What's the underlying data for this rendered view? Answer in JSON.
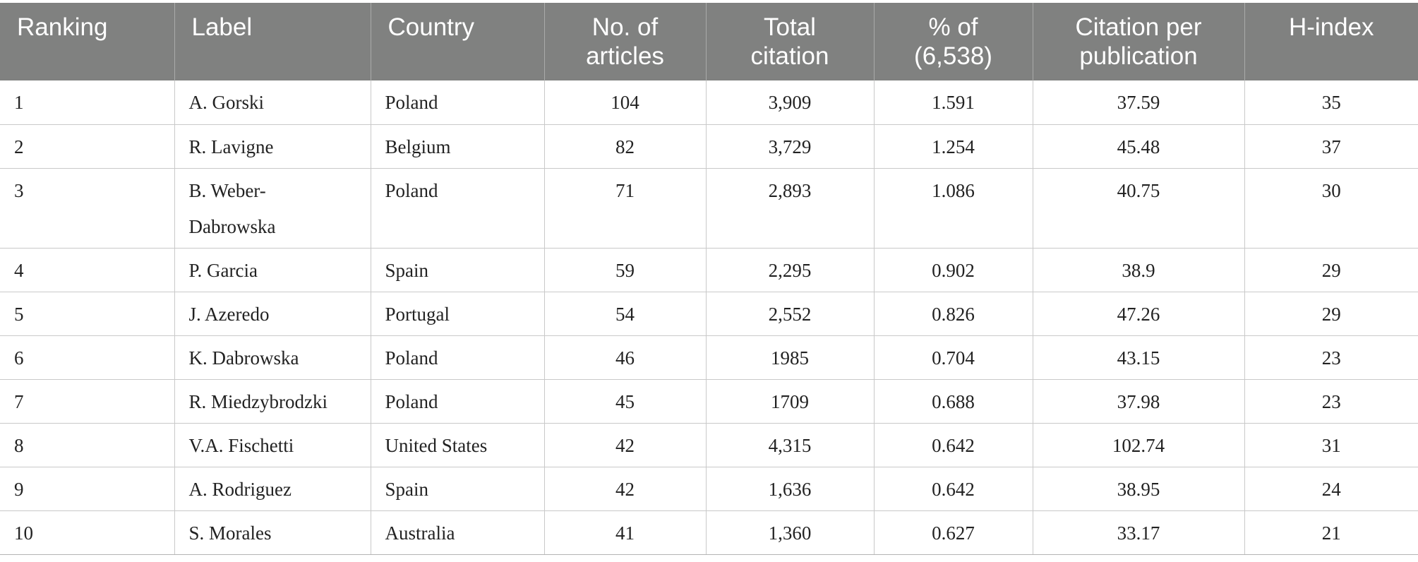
{
  "table": {
    "headers": {
      "ranking": "Ranking",
      "label": "Label",
      "country": "Country",
      "articles_line1": "No. of",
      "articles_line2": "articles",
      "citation_line1": "Total",
      "citation_line2": "citation",
      "percent_line1": "% of",
      "percent_line2": "(6,538)",
      "cpp_line1": "Citation per",
      "cpp_line2": "publication",
      "hindex": "H-index"
    },
    "rows": [
      {
        "ranking": "1",
        "label": "A. Gorski",
        "label_line2": "",
        "country": "Poland",
        "articles": "104",
        "total_citation": "3,909",
        "percent": "1.591",
        "cpp": "37.59",
        "hindex": "35"
      },
      {
        "ranking": "2",
        "label": "R. Lavigne",
        "label_line2": "",
        "country": "Belgium",
        "articles": "82",
        "total_citation": "3,729",
        "percent": "1.254",
        "cpp": "45.48",
        "hindex": "37"
      },
      {
        "ranking": "3",
        "label": "B. Weber-",
        "label_line2": "Dabrowska",
        "country": "Poland",
        "articles": "71",
        "total_citation": "2,893",
        "percent": "1.086",
        "cpp": "40.75",
        "hindex": "30"
      },
      {
        "ranking": "4",
        "label": "P. Garcia",
        "label_line2": "",
        "country": "Spain",
        "articles": "59",
        "total_citation": "2,295",
        "percent": "0.902",
        "cpp": "38.9",
        "hindex": "29"
      },
      {
        "ranking": "5",
        "label": "J. Azeredo",
        "label_line2": "",
        "country": "Portugal",
        "articles": "54",
        "total_citation": "2,552",
        "percent": "0.826",
        "cpp": "47.26",
        "hindex": "29"
      },
      {
        "ranking": "6",
        "label": "K. Dabrowska",
        "label_line2": "",
        "country": "Poland",
        "articles": "46",
        "total_citation": "1985",
        "percent": "0.704",
        "cpp": "43.15",
        "hindex": "23"
      },
      {
        "ranking": "7",
        "label": "R. Miedzybrodzki",
        "label_line2": "",
        "country": "Poland",
        "articles": "45",
        "total_citation": "1709",
        "percent": "0.688",
        "cpp": "37.98",
        "hindex": "23"
      },
      {
        "ranking": "8",
        "label": "V.A. Fischetti",
        "label_line2": "",
        "country": "United States",
        "articles": "42",
        "total_citation": "4,315",
        "percent": "0.642",
        "cpp": "102.74",
        "hindex": "31"
      },
      {
        "ranking": "9",
        "label": "A. Rodriguez",
        "label_line2": "",
        "country": "Spain",
        "articles": "42",
        "total_citation": "1,636",
        "percent": "0.642",
        "cpp": "38.95",
        "hindex": "24"
      },
      {
        "ranking": "10",
        "label": "S. Morales",
        "label_line2": "",
        "country": "Australia",
        "articles": "41",
        "total_citation": "1,360",
        "percent": "0.627",
        "cpp": "33.17",
        "hindex": "21"
      }
    ]
  }
}
